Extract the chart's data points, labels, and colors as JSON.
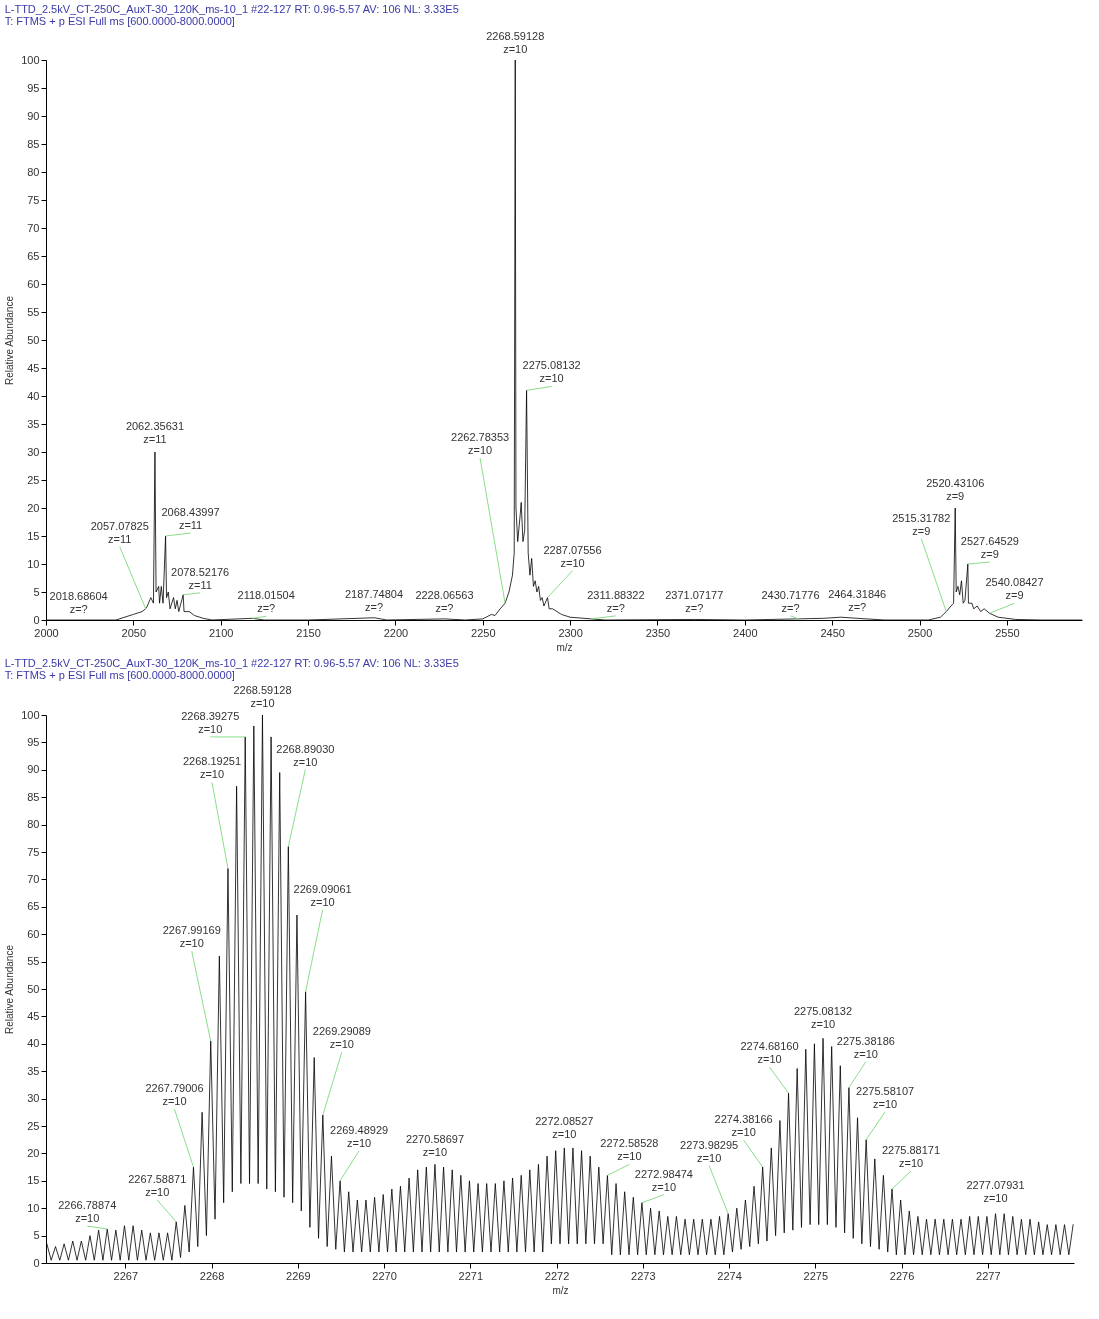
{
  "chart_data": [
    {
      "type": "line",
      "title": "L-TTD_2.5kV_CT-250C_AuxT-30_120K_ms-10_1 #22-127   RT: 0.96-5.57   AV: 106   NL: 3.33E5",
      "subtitle": "T: FTMS + p ESI Full ms [600.0000-8000.0000]",
      "xlabel": "m/z",
      "ylabel": "Relative Abundance",
      "color": "#000000",
      "x": [
        2000,
        2040,
        2050,
        2055,
        2057,
        2058,
        2060,
        2061.5,
        2062.36,
        2063,
        2064.5,
        2065,
        2066,
        2067,
        2068.44,
        2069,
        2070,
        2071,
        2073,
        2074,
        2075,
        2076,
        2078.52,
        2079,
        2082,
        2085,
        2090,
        2095,
        2118,
        2125,
        2150,
        2188,
        2195,
        2228,
        2240,
        2250,
        2255,
        2257,
        2260,
        2262.78,
        2265,
        2267,
        2268,
        2268.59,
        2269,
        2270,
        2271.5,
        2272,
        2273,
        2274,
        2275.08,
        2276,
        2277,
        2278,
        2279,
        2280,
        2281,
        2282,
        2283,
        2284,
        2285,
        2287.08,
        2288,
        2290,
        2295,
        2300,
        2311.88,
        2320,
        2371.07,
        2400,
        2430.72,
        2445,
        2455,
        2464.32,
        2480,
        2505,
        2512,
        2515.32,
        2518,
        2519.5,
        2520.43,
        2521,
        2522,
        2523,
        2524,
        2525,
        2526,
        2527.65,
        2528,
        2530,
        2531,
        2533,
        2535,
        2537,
        2540.08,
        2545,
        2555,
        2570,
        2593
      ],
      "values": [
        0,
        0,
        1,
        1.5,
        2,
        2.5,
        4,
        3,
        30,
        5,
        6,
        3,
        6,
        3,
        15,
        4,
        5,
        2,
        4,
        2,
        3.5,
        1.5,
        4.5,
        1.5,
        1.5,
        0.8,
        0.3,
        0,
        0.3,
        0,
        0,
        0.4,
        0,
        0.2,
        0,
        0.2,
        1,
        0.8,
        2,
        3,
        5,
        8,
        12,
        100,
        20,
        14,
        19,
        21,
        14,
        16,
        41,
        12,
        8,
        11,
        6,
        7,
        5,
        6,
        3.5,
        4,
        2.5,
        4,
        2,
        2,
        1,
        0.5,
        0.2,
        0,
        0.1,
        0,
        0.2,
        0.3,
        0.5,
        0.3,
        0,
        0,
        0.5,
        1.5,
        2.5,
        3,
        20,
        5,
        6,
        4.5,
        7,
        3,
        3.5,
        10,
        3,
        3,
        2,
        2.5,
        1.5,
        2,
        1.2,
        0.5,
        0.1,
        0,
        0
      ],
      "xlim": [
        2000,
        2593
      ],
      "xticks": [
        2000,
        2050,
        2100,
        2150,
        2200,
        2250,
        2300,
        2350,
        2400,
        2450,
        2500,
        2550
      ],
      "ylim": [
        0,
        100
      ],
      "yticks": [
        0,
        5,
        10,
        15,
        20,
        25,
        30,
        35,
        40,
        45,
        50,
        55,
        60,
        65,
        70,
        75,
        80,
        85,
        90,
        95,
        100
      ],
      "grid": false,
      "marker": "none",
      "annotations": [
        {
          "text": "2018.68604\nz=?",
          "x": 2018.69,
          "y": 0
        },
        {
          "text": "2057.07825\nz=11",
          "x": 2057.08,
          "y": 2
        },
        {
          "text": "2062.35631\nz=11",
          "x": 2062.36,
          "y": 30
        },
        {
          "text": "2068.43997\nz=11",
          "x": 2068.44,
          "y": 15
        },
        {
          "text": "2078.52176\nz=11",
          "x": 2078.52,
          "y": 4.5
        },
        {
          "text": "2118.01504\nz=?",
          "x": 2118.02,
          "y": 0.3
        },
        {
          "text": "2187.74804\nz=?",
          "x": 2187.75,
          "y": 0.4
        },
        {
          "text": "2228.06563\nz=?",
          "x": 2228.07,
          "y": 0.2
        },
        {
          "text": "2262.78353\nz=10",
          "x": 2262.78,
          "y": 3
        },
        {
          "text": "2268.59128\nz=10",
          "x": 2268.59,
          "y": 100
        },
        {
          "text": "2275.08132\nz=10",
          "x": 2275.08,
          "y": 41
        },
        {
          "text": "2287.07556\nz=10",
          "x": 2287.08,
          "y": 4
        },
        {
          "text": "2311.88322\nz=?",
          "x": 2311.88,
          "y": 0.2
        },
        {
          "text": "2371.07177\nz=?",
          "x": 2371.07,
          "y": 0.1
        },
        {
          "text": "2430.71776\nz=?",
          "x": 2430.72,
          "y": 0.2
        },
        {
          "text": "2464.31846\nz=?",
          "x": 2464.32,
          "y": 0.3
        },
        {
          "text": "2515.31782\nz=9",
          "x": 2515.32,
          "y": 1.5
        },
        {
          "text": "2520.43106\nz=9",
          "x": 2520.43,
          "y": 20
        },
        {
          "text": "2527.64529\nz=9",
          "x": 2527.65,
          "y": 10
        },
        {
          "text": "2540.08427\nz=9",
          "x": 2540.08,
          "y": 1.2
        }
      ]
    },
    {
      "type": "line",
      "title": "L-TTD_2.5kV_CT-250C_AuxT-30_120K_ms-10_1 #22-127   RT: 0.96-5.57   AV: 106   NL: 3.33E5",
      "subtitle": "T: FTMS + p ESI Full ms [600.0000-8000.0000]",
      "xlabel": "m/z",
      "ylabel": "Relative Abundance",
      "color": "#000000",
      "x": [
        2266.09,
        2266.14,
        2266.19,
        2266.24,
        2266.29,
        2266.34,
        2266.39,
        2266.44,
        2266.49,
        2266.54,
        2266.59,
        2266.64,
        2266.69,
        2266.74,
        2266.79,
        2266.84,
        2266.89,
        2266.94,
        2266.99,
        2267.04,
        2267.09,
        2267.14,
        2267.19,
        2267.24,
        2267.29,
        2267.34,
        2267.39,
        2267.44,
        2267.49,
        2267.54,
        2267.59,
        2267.64,
        2267.69,
        2267.74,
        2267.79,
        2267.84,
        2267.89,
        2267.94,
        2267.99,
        2268.04,
        2268.09,
        2268.14,
        2268.19,
        2268.24,
        2268.29,
        2268.34,
        2268.39,
        2268.44,
        2268.49,
        2268.54,
        2268.59,
        2268.64,
        2268.69,
        2268.74,
        2268.79,
        2268.84,
        2268.89,
        2268.94,
        2268.99,
        2269.04,
        2269.09,
        2269.14,
        2269.19,
        2269.24,
        2269.29,
        2269.34,
        2269.39,
        2269.44,
        2269.49,
        2269.54,
        2269.59,
        2269.64,
        2269.69,
        2269.74,
        2269.79,
        2269.84,
        2269.89,
        2269.94,
        2269.99,
        2270.04,
        2270.09,
        2270.14,
        2270.19,
        2270.24,
        2270.29,
        2270.34,
        2270.39,
        2270.44,
        2270.49,
        2270.54,
        2270.59,
        2270.64,
        2270.69,
        2270.74,
        2270.79,
        2270.84,
        2270.89,
        2270.94,
        2270.99,
        2271.04,
        2271.09,
        2271.14,
        2271.19,
        2271.24,
        2271.29,
        2271.34,
        2271.39,
        2271.44,
        2271.49,
        2271.54,
        2271.59,
        2271.64,
        2271.69,
        2271.74,
        2271.79,
        2271.84,
        2271.89,
        2271.94,
        2271.99,
        2272.04,
        2272.09,
        2272.14,
        2272.19,
        2272.24,
        2272.29,
        2272.34,
        2272.39,
        2272.44,
        2272.49,
        2272.54,
        2272.59,
        2272.64,
        2272.69,
        2272.74,
        2272.79,
        2272.84,
        2272.89,
        2272.94,
        2272.99,
        2273.04,
        2273.09,
        2273.14,
        2273.19,
        2273.24,
        2273.29,
        2273.34,
        2273.39,
        2273.44,
        2273.49,
        2273.54,
        2273.59,
        2273.64,
        2273.69,
        2273.74,
        2273.79,
        2273.84,
        2273.89,
        2273.94,
        2273.99,
        2274.04,
        2274.09,
        2274.14,
        2274.19,
        2274.24,
        2274.29,
        2274.34,
        2274.39,
        2274.44,
        2274.49,
        2274.54,
        2274.59,
        2274.64,
        2274.69,
        2274.74,
        2274.79,
        2274.84,
        2274.89,
        2274.94,
        2274.99,
        2275.04,
        2275.09,
        2275.14,
        2275.19,
        2275.24,
        2275.29,
        2275.34,
        2275.39,
        2275.44,
        2275.49,
        2275.54,
        2275.59,
        2275.64,
        2275.69,
        2275.74,
        2275.79,
        2275.84,
        2275.89,
        2275.94,
        2275.99,
        2276.04,
        2276.09,
        2276.14,
        2276.19,
        2276.24,
        2276.29,
        2276.34,
        2276.39,
        2276.44,
        2276.49,
        2276.54,
        2276.59,
        2276.64,
        2276.69,
        2276.74,
        2276.79,
        2276.84,
        2276.89,
        2276.94,
        2276.99,
        2277.04,
        2277.09,
        2277.14,
        2277.19,
        2277.24,
        2277.29,
        2277.34,
        2277.39,
        2277.44,
        2277.49,
        2277.54,
        2277.59,
        2277.64,
        2277.69,
        2277.74,
        2277.79,
        2277.84,
        2277.89,
        2277.94,
        2277.99
      ],
      "values": [
        3.5,
        0.5,
        3,
        0.5,
        3.5,
        0.5,
        4,
        0.5,
        4,
        0.5,
        5,
        0.5,
        6,
        0.5,
        6.2,
        0.5,
        6,
        0.5,
        6.8,
        0.5,
        6.8,
        0.5,
        6,
        0.5,
        5.5,
        0.5,
        5.5,
        0.5,
        5.5,
        0.5,
        7.5,
        1,
        10.5,
        2,
        17.5,
        3,
        27.5,
        5,
        40.5,
        8,
        56,
        11,
        72,
        13,
        87,
        14.5,
        96,
        14.5,
        98,
        14.5,
        100,
        13.5,
        96,
        13,
        89.5,
        12,
        76,
        11,
        63.5,
        9.5,
        49.5,
        6.5,
        37.5,
        4.5,
        27,
        3,
        19.5,
        2.5,
        15,
        2,
        13,
        2,
        11.5,
        2,
        11.5,
        2,
        12,
        2,
        12.5,
        2,
        13.5,
        2,
        14,
        2,
        15.5,
        2,
        17,
        2,
        17.5,
        2,
        18,
        2,
        17.5,
        2,
        17,
        2,
        16,
        2,
        15,
        2,
        14.5,
        2,
        14.5,
        2,
        14.5,
        2,
        15,
        2,
        15.5,
        2,
        16,
        2,
        17,
        2,
        18,
        2,
        19.5,
        3.5,
        20.5,
        3.5,
        21,
        3.5,
        21,
        3.5,
        20.5,
        3.5,
        19.5,
        3.5,
        17.5,
        3.5,
        16,
        1.5,
        14.5,
        1.5,
        13,
        1.5,
        12,
        1.5,
        11,
        1.5,
        10,
        1.5,
        9.5,
        1.5,
        8.5,
        1.5,
        8.5,
        1.5,
        8,
        1.5,
        8,
        1.5,
        8,
        1.5,
        8,
        1.5,
        8.5,
        1.5,
        9,
        2,
        10,
        2.5,
        11.5,
        3,
        14,
        3.5,
        17.5,
        4,
        21,
        5,
        26,
        5.5,
        31,
        6,
        35.5,
        6.5,
        39,
        7,
        40,
        7,
        41,
        7,
        39.5,
        6.5,
        36,
        5.5,
        32,
        4.5,
        26.5,
        3.5,
        22.5,
        3,
        19,
        2.5,
        16,
        2,
        13.5,
        1.5,
        11.5,
        1.5,
        9.5,
        1.5,
        8.5,
        1.5,
        8,
        1.5,
        8,
        1.5,
        8,
        1.5,
        8,
        1.5,
        8,
        1.5,
        8.5,
        1.5,
        8.5,
        1.5,
        8.5,
        1.5,
        9,
        1.5,
        9,
        1.5,
        8.5,
        1.5,
        8,
        1.5,
        8,
        1.5,
        7.5,
        1.5,
        7,
        1.5,
        7,
        1.5,
        7,
        1.5,
        7
      ],
      "xlim": [
        2266.08,
        2278.0
      ],
      "xticks": [
        2267,
        2268,
        2269,
        2270,
        2271,
        2272,
        2273,
        2274,
        2275,
        2276,
        2277
      ],
      "ylim": [
        0,
        100
      ],
      "yticks": [
        0,
        5,
        10,
        15,
        20,
        25,
        30,
        35,
        40,
        45,
        50,
        55,
        60,
        65,
        70,
        75,
        80,
        85,
        90,
        95,
        100
      ],
      "grid": false,
      "marker": "none",
      "annotations": [
        {
          "text": "2266.78874\nz=10",
          "x": 2266.79,
          "y": 6.2
        },
        {
          "text": "2267.58871\nz=10",
          "x": 2267.59,
          "y": 7.5
        },
        {
          "text": "2267.79006\nz=10",
          "x": 2267.79,
          "y": 17.5
        },
        {
          "text": "2267.99169\nz=10",
          "x": 2267.99,
          "y": 40.5
        },
        {
          "text": "2268.19251\nz=10",
          "x": 2268.19,
          "y": 72
        },
        {
          "text": "2268.39275\nz=10",
          "x": 2268.39,
          "y": 96
        },
        {
          "text": "2268.59128\nz=10",
          "x": 2268.59,
          "y": 100
        },
        {
          "text": "2268.89030\nz=10",
          "x": 2268.89,
          "y": 76
        },
        {
          "text": "2269.09061\nz=10",
          "x": 2269.09,
          "y": 49.5
        },
        {
          "text": "2269.29089\nz=10",
          "x": 2269.29,
          "y": 27
        },
        {
          "text": "2269.48929\nz=10",
          "x": 2269.49,
          "y": 15
        },
        {
          "text": "2270.58697\nz=10",
          "x": 2270.59,
          "y": 18
        },
        {
          "text": "2272.08527\nz=10",
          "x": 2272.09,
          "y": 21
        },
        {
          "text": "2272.58528\nz=10",
          "x": 2272.59,
          "y": 16
        },
        {
          "text": "2272.98474\nz=10",
          "x": 2272.99,
          "y": 11
        },
        {
          "text": "2273.98295\nz=10",
          "x": 2273.99,
          "y": 9
        },
        {
          "text": "2274.38166\nz=10",
          "x": 2274.39,
          "y": 17.5
        },
        {
          "text": "2274.68160\nz=10",
          "x": 2274.69,
          "y": 31
        },
        {
          "text": "2275.08132\nz=10",
          "x": 2275.09,
          "y": 41
        },
        {
          "text": "2275.38186\nz=10",
          "x": 2275.39,
          "y": 32
        },
        {
          "text": "2275.58107\nz=10",
          "x": 2275.59,
          "y": 22.5
        },
        {
          "text": "2275.88171\nz=10",
          "x": 2275.89,
          "y": 13.5
        },
        {
          "text": "2277.07931\nz=10",
          "x": 2277.09,
          "y": 9
        }
      ]
    }
  ]
}
